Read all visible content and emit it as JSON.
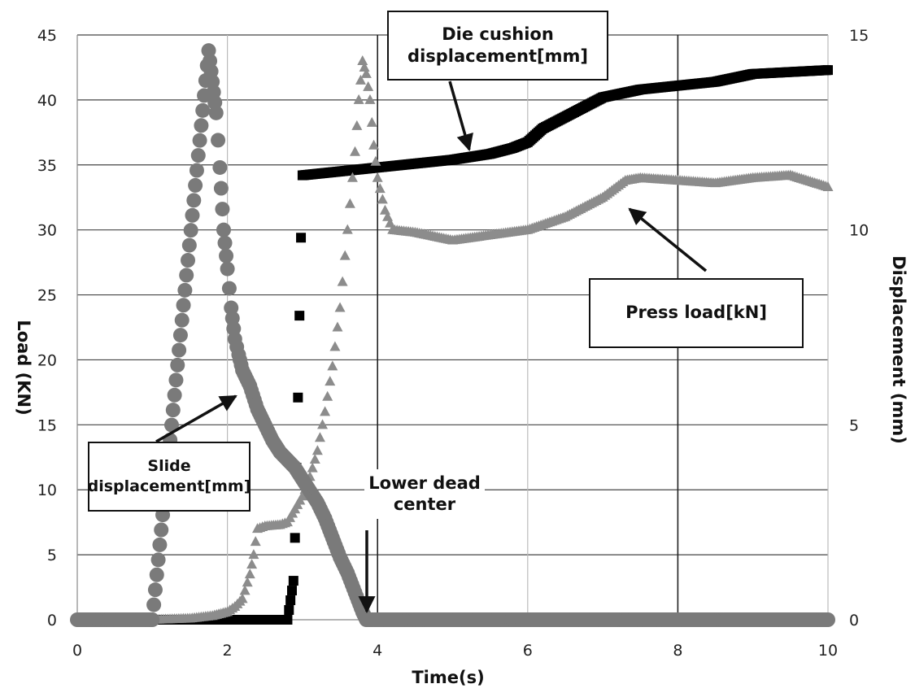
{
  "chart_data": {
    "type": "scatter",
    "xlabel": "Time(s)",
    "ylabel_left": "Load (KN)",
    "ylabel_right": "Displacement (mm)",
    "xlim": [
      0,
      10
    ],
    "ylim_left": [
      0,
      45
    ],
    "ylim_right": [
      0,
      15
    ],
    "x_ticks": [
      "0",
      "2",
      "4",
      "6",
      "8",
      "10"
    ],
    "y_left_ticks": [
      "0",
      "5",
      "10",
      "15",
      "20",
      "25",
      "30",
      "35",
      "40",
      "45"
    ],
    "y_right_ticks": [
      "0",
      "5",
      "10",
      "15"
    ],
    "grid": true,
    "annotations": {
      "die_cushion": {
        "line1": "Die cushion",
        "line2": "displacement[mm]"
      },
      "press_load": {
        "text": "Press load[kN]"
      },
      "slide": {
        "line1": "Slide",
        "line2": "displacement[mm]"
      },
      "lower_dead_center": {
        "line1": "Lower dead",
        "line2": "center"
      }
    },
    "series": [
      {
        "name": "Die cushion displacement[mm]",
        "axis": "right",
        "marker": "square",
        "color": "#000000",
        "x": [
          0,
          1,
          2,
          2.5,
          2.8,
          2.88,
          2.9,
          2.92,
          2.94,
          2.96,
          2.98,
          3.0,
          3.5,
          4.0,
          4.5,
          5.0,
          5.5,
          5.8,
          6.0,
          6.2,
          6.5,
          6.8,
          7.0,
          7.5,
          8.0,
          8.5,
          9.0,
          9.5,
          10.0
        ],
        "y": [
          0,
          0,
          0,
          0,
          0,
          1.0,
          2.1,
          3.9,
          5.7,
          7.8,
          9.8,
          11.4,
          11.5,
          11.6,
          11.7,
          11.8,
          11.95,
          12.1,
          12.25,
          12.6,
          12.9,
          13.2,
          13.4,
          13.6,
          13.7,
          13.8,
          14.0,
          14.05,
          14.1
        ]
      },
      {
        "name": "Press load[kN]",
        "axis": "left",
        "marker": "triangle",
        "color": "#8c8c8c",
        "x": [
          0,
          1,
          1.5,
          1.8,
          2.0,
          2.1,
          2.2,
          2.3,
          2.35,
          2.4,
          2.5,
          2.7,
          2.8,
          2.9,
          3.0,
          3.1,
          3.2,
          3.3,
          3.4,
          3.5,
          3.6,
          3.7,
          3.75,
          3.8,
          3.85,
          3.9,
          3.95,
          4.0,
          4.1,
          4.2,
          4.5,
          5.0,
          5.5,
          6.0,
          6.5,
          7.0,
          7.3,
          7.5,
          8.0,
          8.5,
          9.0,
          9.5,
          10.0
        ],
        "y": [
          0,
          0,
          0.1,
          0.3,
          0.6,
          1.0,
          1.6,
          3.5,
          5.0,
          7.0,
          7.2,
          7.3,
          7.5,
          8.5,
          9.5,
          11.0,
          13.0,
          16.0,
          19.5,
          24.0,
          30.0,
          36.0,
          40.0,
          43.0,
          42.0,
          40.0,
          36.5,
          34.0,
          31.5,
          30.0,
          29.8,
          29.2,
          29.6,
          30.0,
          31.0,
          32.5,
          33.8,
          34.0,
          33.8,
          33.6,
          34.0,
          34.2,
          33.3
        ]
      },
      {
        "name": "Slide displacement[mm]",
        "axis": "right",
        "marker": "circle",
        "color": "#7a7a7a",
        "x": [
          0,
          1,
          1.75,
          1.8,
          1.85,
          1.9,
          1.95,
          2.0,
          2.05,
          2.1,
          2.15,
          2.2,
          2.3,
          2.4,
          2.5,
          2.6,
          2.7,
          2.8,
          2.9,
          3.0,
          3.1,
          3.2,
          3.3,
          3.4,
          3.5,
          3.6,
          3.7,
          3.8,
          3.85,
          4.0,
          5.0,
          6.0,
          7.0,
          8.0,
          9.0,
          10.0
        ],
        "y": [
          0,
          0,
          14.6,
          13.8,
          13.0,
          11.6,
          10.0,
          9.0,
          8.0,
          7.2,
          6.8,
          6.4,
          6.0,
          5.4,
          5.0,
          4.6,
          4.3,
          4.1,
          3.9,
          3.6,
          3.3,
          3.0,
          2.6,
          2.1,
          1.6,
          1.2,
          0.7,
          0.2,
          0,
          0,
          0,
          0,
          0,
          0,
          0,
          0
        ]
      }
    ]
  }
}
